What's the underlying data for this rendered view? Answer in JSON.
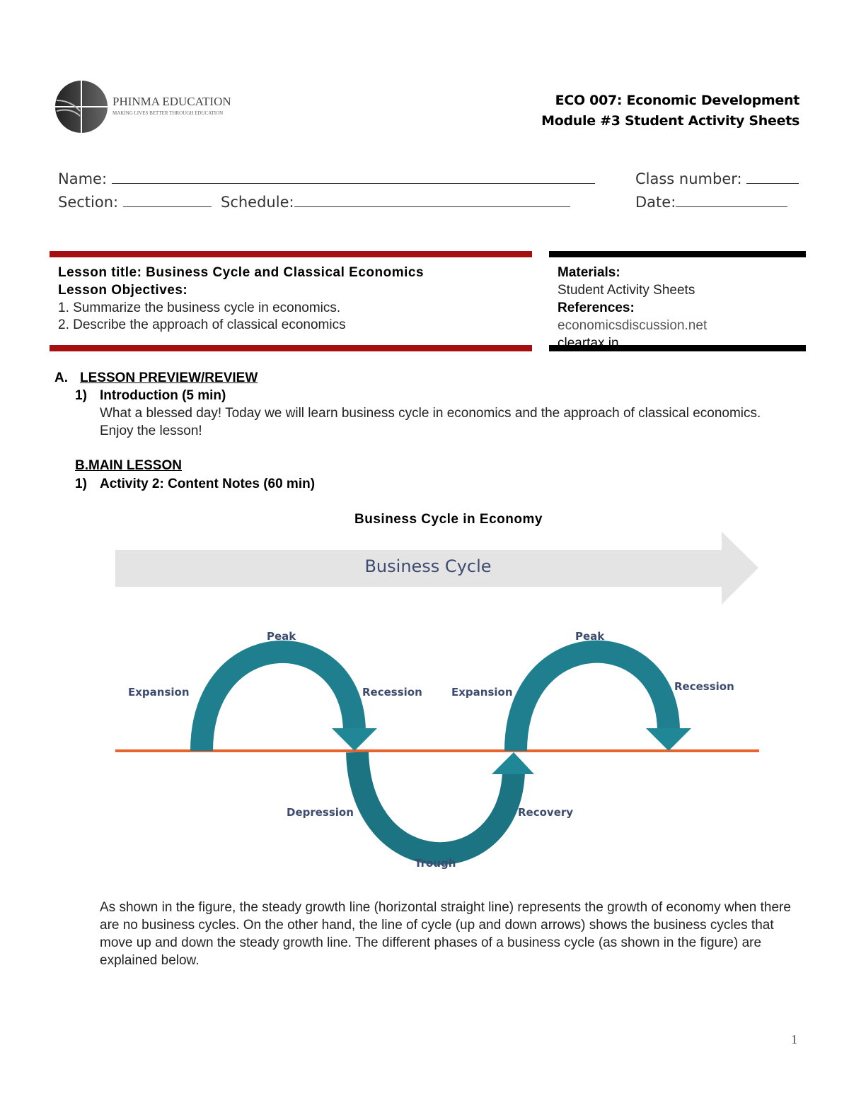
{
  "logo": {
    "name": "PHINMA EDUCATION",
    "tagline": "MAKING LIVES BETTER THROUGH EDUCATION"
  },
  "header": {
    "course": "ECO 007: Economic Development",
    "module": "Module #3 Student Activity Sheets"
  },
  "fields": {
    "name": "Name:",
    "class_number": "Class number:",
    "section": "Section:",
    "schedule": "Schedule:",
    "date": "Date:"
  },
  "lesson_box": {
    "title": "Lesson title: Business Cycle and Classical Economics",
    "objectives_label": "Lesson Objectives:",
    "objectives": [
      "1. Summarize the business cycle in economics.",
      "2. Describe the approach of classical economics"
    ]
  },
  "materials_box": {
    "materials_label": "Materials:",
    "materials": "Student Activity Sheets",
    "references_label": "References:",
    "references": [
      "economicsdiscussion.net",
      "cleartax.in"
    ]
  },
  "section_a": {
    "label": "A.",
    "title": "LESSON PREVIEW/REVIEW",
    "item_num": "1)",
    "item_title": "Introduction (5 min)",
    "text": "What a blessed day! Today we will learn business cycle in economics and the approach of classical economics. Enjoy the lesson!"
  },
  "section_b": {
    "title": "B.MAIN LESSON",
    "item_num": "1)",
    "item_title": "Activity 2: Content Notes (60 min)"
  },
  "figure": {
    "caption": "Business Cycle in Economy",
    "banner": "Business Cycle",
    "labels": {
      "expansion1": "Expansion",
      "peak1": "Peak",
      "recession1": "Recession",
      "expansion2": "Expansion",
      "peak2": "Peak",
      "recession2": "Recession",
      "depression": "Depression",
      "trough": "Trough",
      "recovery": "Recovery"
    },
    "colors": {
      "arrow_dark": "#1b6877",
      "arrow_light": "#208796",
      "growth_line": "#e8642c",
      "banner": "#e4e4e4"
    }
  },
  "body_text": "As shown in the figure, the steady growth line (horizontal straight line) represents the growth of economy when there are no business cycles. On the other hand, the line of cycle (up and down arrows) shows the business cycles that move up and down the steady growth line. The different phases of a business cycle (as shown in the figure) are explained below.",
  "page_number": "1"
}
